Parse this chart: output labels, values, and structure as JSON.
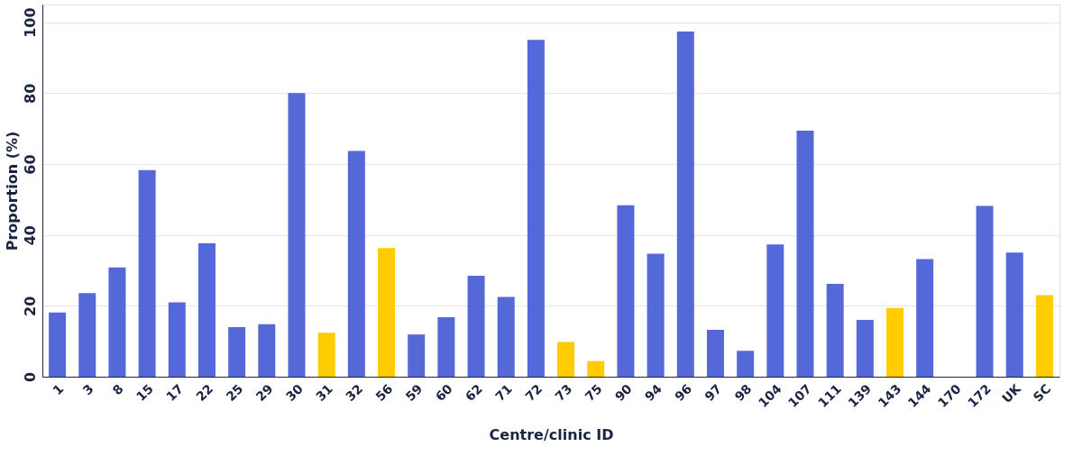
{
  "chart_data": {
    "type": "bar",
    "xlabel": "Centre/clinic ID",
    "ylabel": "Proportion (%)",
    "categories": [
      "1",
      "3",
      "8",
      "15",
      "17",
      "22",
      "25",
      "29",
      "30",
      "31",
      "32",
      "56",
      "59",
      "60",
      "62",
      "71",
      "72",
      "73",
      "75",
      "90",
      "94",
      "96",
      "97",
      "98",
      "104",
      "107",
      "111",
      "139",
      "143",
      "144",
      "170",
      "172",
      "UK",
      "SC"
    ],
    "values": [
      18.1,
      23.6,
      30.8,
      58.3,
      21,
      37.6,
      14,
      14.8,
      80,
      12.4,
      63.7,
      36.3,
      11.9,
      16.8,
      28.5,
      22.5,
      95,
      9.8,
      4.4,
      48.4,
      34.7,
      97.4,
      13.2,
      7.3,
      37.3,
      69.4,
      26.2,
      16,
      19.4,
      33.2,
      0,
      48.2,
      35,
      23
    ],
    "colors": [
      "#5468d8",
      "#5468d8",
      "#5468d8",
      "#5468d8",
      "#5468d8",
      "#5468d8",
      "#5468d8",
      "#5468d8",
      "#5468d8",
      "#ffcc00",
      "#5468d8",
      "#ffcc00",
      "#5468d8",
      "#5468d8",
      "#5468d8",
      "#5468d8",
      "#5468d8",
      "#ffcc00",
      "#ffcc00",
      "#5468d8",
      "#5468d8",
      "#5468d8",
      "#5468d8",
      "#5468d8",
      "#5468d8",
      "#5468d8",
      "#5468d8",
      "#5468d8",
      "#ffcc00",
      "#5468d8",
      "#5468d8",
      "#5468d8",
      "#5468d8",
      "#ffcc00"
    ],
    "ylim": [
      0,
      105
    ],
    "yticks": [
      0,
      20,
      40,
      60,
      80,
      100
    ],
    "grid": "y"
  }
}
